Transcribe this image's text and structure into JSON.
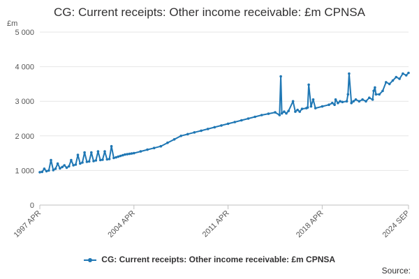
{
  "chart_data": {
    "type": "line",
    "title": "CG: Current receipts: Other income receivable: £m CPNSA",
    "ylabel": "£m",
    "xlabel": "",
    "ylim": [
      0,
      5000
    ],
    "yticks": [
      "0",
      "1 000",
      "2 000",
      "3 000",
      "4 000",
      "5 000"
    ],
    "ytick_values": [
      0,
      1000,
      2000,
      3000,
      4000,
      5000
    ],
    "xticks": [
      "1997 APR",
      "2004 APR",
      "2011 APR",
      "2018 APR",
      "2024 SEP"
    ],
    "xtick_values": [
      1997.25,
      2004.25,
      2011.25,
      2018.25,
      2024.67
    ],
    "xlim": [
      1997.25,
      2024.67
    ],
    "grid": true,
    "legend_position": "bottom",
    "color": "#1f77b4",
    "series": [
      {
        "name": "CG: Current receipts: Other income receivable: £m CPNSA",
        "x": [
          1997.25,
          1997.42,
          1997.58,
          1997.75,
          1997.92,
          1998.08,
          1998.25,
          1998.42,
          1998.58,
          1998.75,
          1998.92,
          1999.08,
          1999.25,
          1999.42,
          1999.58,
          1999.75,
          1999.92,
          2000.08,
          2000.25,
          2000.42,
          2000.58,
          2000.75,
          2000.92,
          2001.08,
          2001.25,
          2001.42,
          2001.58,
          2001.75,
          2001.92,
          2002.08,
          2002.25,
          2002.42,
          2002.58,
          2002.75,
          2002.92,
          2003.08,
          2003.25,
          2003.42,
          2003.58,
          2003.75,
          2003.92,
          2004.08,
          2004.25,
          2004.75,
          2005.25,
          2005.75,
          2006.25,
          2006.75,
          2007.25,
          2007.75,
          2008.25,
          2008.75,
          2009.25,
          2009.75,
          2010.25,
          2010.75,
          2011.25,
          2011.75,
          2012.25,
          2012.75,
          2013.25,
          2013.75,
          2014.25,
          2014.75,
          2015.08,
          2015.17,
          2015.25,
          2015.42,
          2015.58,
          2015.75,
          2016.08,
          2016.25,
          2016.42,
          2016.58,
          2016.75,
          2017.08,
          2017.17,
          2017.25,
          2017.42,
          2017.58,
          2017.75,
          2018.25,
          2018.75,
          2019.0,
          2019.17,
          2019.25,
          2019.42,
          2019.58,
          2019.75,
          2020.08,
          2020.17,
          2020.25,
          2020.42,
          2020.58,
          2020.75,
          2021.0,
          2021.25,
          2021.5,
          2021.75,
          2022.0,
          2022.08,
          2022.17,
          2022.25,
          2022.5,
          2022.75,
          2023.0,
          2023.25,
          2023.5,
          2023.75,
          2024.0,
          2024.25,
          2024.5,
          2024.67
        ],
        "values": [
          950,
          960,
          1050,
          980,
          1000,
          1300,
          1010,
          1050,
          1200,
          1060,
          1100,
          1150,
          1080,
          1120,
          1300,
          1150,
          1170,
          1450,
          1200,
          1230,
          1520,
          1250,
          1260,
          1520,
          1270,
          1290,
          1550,
          1300,
          1310,
          1550,
          1320,
          1330,
          1700,
          1360,
          1380,
          1400,
          1420,
          1440,
          1460,
          1470,
          1480,
          1490,
          1500,
          1550,
          1600,
          1650,
          1700,
          1800,
          1900,
          2000,
          2050,
          2100,
          2150,
          2200,
          2250,
          2300,
          2350,
          2400,
          2450,
          2500,
          2550,
          2600,
          2640,
          2680,
          2600,
          3720,
          2650,
          2700,
          2650,
          2720,
          3000,
          2700,
          2750,
          2700,
          2780,
          2800,
          2820,
          3480,
          2850,
          3050,
          2800,
          2850,
          2900,
          2950,
          2900,
          3050,
          2950,
          3000,
          2980,
          3000,
          3200,
          3800,
          2950,
          3000,
          3050,
          3000,
          3050,
          3000,
          3100,
          3050,
          3300,
          3400,
          3200,
          3200,
          3300,
          3550,
          3500,
          3600,
          3700,
          3650,
          3800,
          3750,
          3820
        ]
      }
    ]
  },
  "legend": {
    "label": "CG: Current receipts: Other income receivable: £m CPNSA"
  },
  "footer": {
    "source_label": "Source:"
  }
}
